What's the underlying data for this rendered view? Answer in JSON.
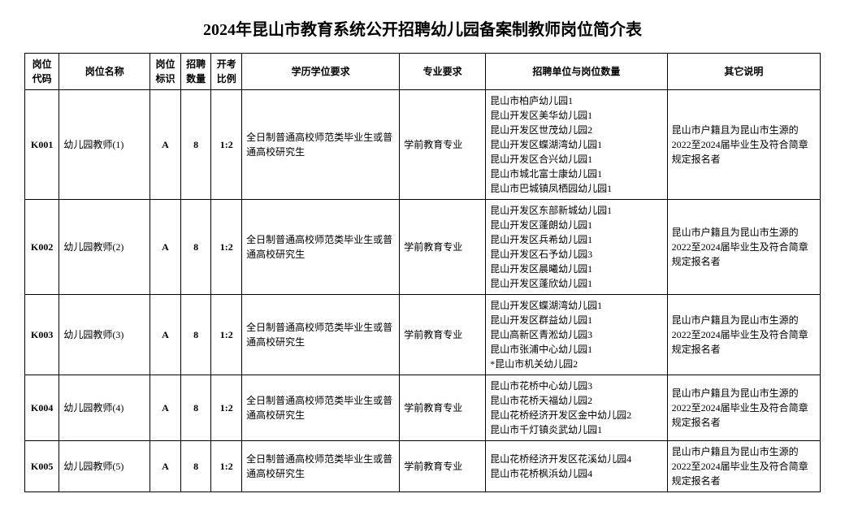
{
  "title": "2024年昆山市教育系统公开招聘幼儿园备案制教师岗位简介表",
  "headers": {
    "code": "岗位代码",
    "name": "岗位名称",
    "mark": "岗位标识",
    "count": "招聘数量",
    "ratio": "开考比例",
    "edu": "学历学位要求",
    "major": "专业要求",
    "units": "招聘单位与岗位数量",
    "other": "其它说明"
  },
  "rows": [
    {
      "code": "K001",
      "name": "幼儿园教师(1)",
      "mark": "A",
      "count": "8",
      "ratio": "1:2",
      "edu": "全日制普通高校师范类毕业生或普通高校研究生",
      "major": "学前教育专业",
      "units": [
        "昆山市柏庐幼儿园1",
        "昆山开发区美华幼儿园1",
        "昆山开发区世茂幼儿园2",
        "昆山开发区蝶湖湾幼儿园1",
        "昆山开发区合兴幼儿园1",
        "昆山市城北富士康幼儿园1",
        "昆山市巴城镇凤栖园幼儿园1"
      ],
      "other": "昆山市户籍且为昆山市生源的2022至2024届毕业生及符合简章规定报名者"
    },
    {
      "code": "K002",
      "name": "幼儿园教师(2)",
      "mark": "A",
      "count": "8",
      "ratio": "1:2",
      "edu": "全日制普通高校师范类毕业生或普通高校研究生",
      "major": "学前教育专业",
      "units": [
        "昆山开发区东部新城幼儿园1",
        "昆山开发区蓬朗幼儿园1",
        "昆山开发区兵希幼儿园1",
        "昆山开发区石予幼儿园3",
        "昆山开发区晨曦幼儿园1",
        "昆山开发区蓬欣幼儿园1"
      ],
      "other": "昆山市户籍且为昆山市生源的2022至2024届毕业生及符合简章规定报名者"
    },
    {
      "code": "K003",
      "name": "幼儿园教师(3)",
      "mark": "A",
      "count": "8",
      "ratio": "1:2",
      "edu": "全日制普通高校师范类毕业生或普通高校研究生",
      "major": "学前教育专业",
      "units": [
        "昆山开发区蝶湖湾幼儿园1",
        "昆山开发区群益幼儿园1",
        "昆山高新区青淞幼儿园3",
        "昆山市张浦中心幼儿园1",
        "*昆山市机关幼儿园2"
      ],
      "other": "昆山市户籍且为昆山市生源的2022至2024届毕业生及符合简章规定报名者"
    },
    {
      "code": "K004",
      "name": "幼儿园教师(4)",
      "mark": "A",
      "count": "8",
      "ratio": "1:2",
      "edu": "全日制普通高校师范类毕业生或普通高校研究生",
      "major": "学前教育专业",
      "units": [
        "昆山市花桥中心幼儿园3",
        "昆山市花桥天福幼儿园2",
        "昆山花桥经济开发区金中幼儿园2",
        "昆山市千灯镇炎武幼儿园1"
      ],
      "other": "昆山市户籍且为昆山市生源的2022至2024届毕业生及符合简章规定报名者"
    },
    {
      "code": "K005",
      "name": "幼儿园教师(5)",
      "mark": "A",
      "count": "8",
      "ratio": "1:2",
      "edu": "全日制普通高校师范类毕业生或普通高校研究生",
      "major": "学前教育专业",
      "units": [
        "昆山花桥经济开发区花溪幼儿园4",
        "昆山市花桥枫浜幼儿园4"
      ],
      "other": "昆山市户籍且为昆山市生源的2022至2024届毕业生及符合简章规定报名者"
    }
  ]
}
